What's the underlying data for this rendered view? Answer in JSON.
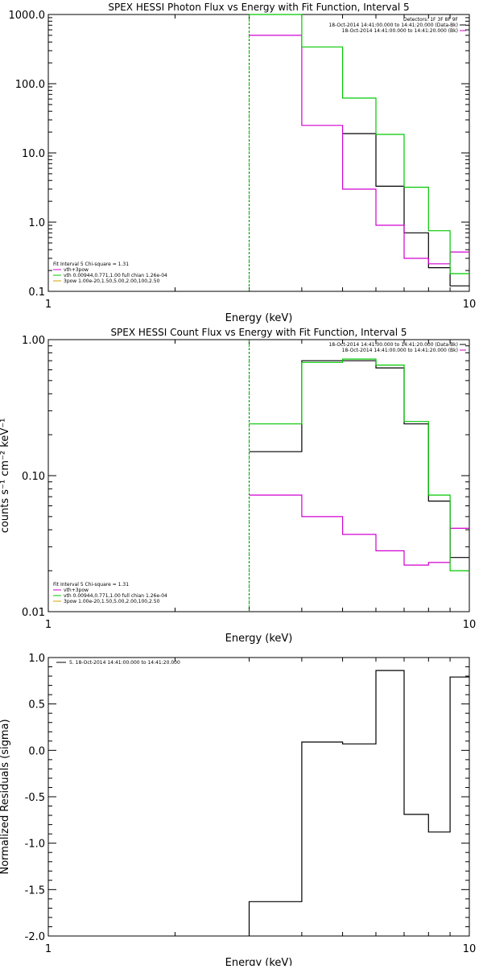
{
  "charts": [
    {
      "type": "line",
      "title": "SPEX HESSI Photon Flux vs Energy with Fit Function, Interval 5",
      "xlabel": "Energy (keV)",
      "ylabel": "",
      "xscale": "log",
      "yscale": "log",
      "xlim": [
        1,
        10
      ],
      "ylim": [
        0.1,
        1000
      ],
      "x_ticks": [
        {
          "v": 1,
          "label": "1"
        },
        {
          "v": 10,
          "label": "10"
        }
      ],
      "y_ticks": [
        {
          "v": 0.1,
          "label": "0.1"
        },
        {
          "v": 1,
          "label": "1.0"
        },
        {
          "v": 10,
          "label": "10.0"
        },
        {
          "v": 100,
          "label": "100.0"
        },
        {
          "v": 1000,
          "label": "1000.0"
        }
      ],
      "vline": {
        "x": 3,
        "color": "#00c800",
        "style": "dashed"
      },
      "series": [
        {
          "color": "#000000",
          "style": "step",
          "edges": [
            5.0,
            6.0,
            7.0,
            8.0,
            9.0,
            10.0
          ],
          "values": [
            19,
            3.3,
            0.7,
            0.22,
            0.12
          ]
        },
        {
          "color": "#d000d0",
          "style": "step",
          "edges": [
            3.0,
            4.0,
            5.0,
            6.0,
            7.0,
            8.0,
            9.0,
            10.0
          ],
          "values": [
            500,
            25,
            3.0,
            0.9,
            0.3,
            0.25,
            0.37
          ]
        },
        {
          "color": "#00c800",
          "style": "step",
          "edges": [
            3.0,
            4.0,
            5.0,
            6.0,
            7.0,
            8.0,
            9.0,
            10.0
          ],
          "values": [
            1200,
            340,
            62,
            18.5,
            3.2,
            0.75,
            0.18
          ]
        }
      ],
      "legend_top": {
        "lines": [
          {
            "text": "Detectors: 1F 3F 8F 9F",
            "color": "#000000"
          },
          {
            "text": "18-Oct-2014 14:41:00.000 to 14:41:20.000 (Data-Bk)",
            "color": "#000000"
          },
          {
            "text": "18-Oct-2014 14:41:00.000 to 14:41:20.000 (Bk)",
            "color": "#d000d0"
          }
        ]
      },
      "legend_bottom": {
        "header": "Fit Interval 5   Chi-square = 1.31",
        "items": [
          {
            "text": "vth+3pow",
            "color": "#d000d0"
          },
          {
            "text": "vth 0.00944,0.771,1.00  full chian 1.26e-04",
            "color": "#00c800"
          },
          {
            "text": "3pow 1.00e-20,1.50,5.00,2.00,100,2.50",
            "color": "#d0a000"
          }
        ]
      }
    },
    {
      "type": "line",
      "title": "SPEX HESSI Count Flux vs Energy with Fit Function, Interval 5",
      "xlabel": "Energy (keV)",
      "ylabel": "counts s⁻¹ cm⁻² keV⁻¹",
      "xscale": "log",
      "yscale": "log",
      "xlim": [
        1,
        10
      ],
      "ylim": [
        0.01,
        1.0
      ],
      "x_ticks": [
        {
          "v": 1,
          "label": "1"
        },
        {
          "v": 10,
          "label": "10"
        }
      ],
      "y_ticks": [
        {
          "v": 0.01,
          "label": "0.01"
        },
        {
          "v": 0.1,
          "label": "0.10"
        },
        {
          "v": 1,
          "label": "1.00"
        }
      ],
      "vline": {
        "x": 3,
        "color": "#00c800",
        "style": "dashed"
      },
      "series": [
        {
          "color": "#000000",
          "style": "step",
          "edges": [
            3.0,
            4.0,
            5.0,
            6.0,
            7.0,
            8.0,
            9.0,
            10.0
          ],
          "values": [
            0.15,
            0.7,
            0.7,
            0.62,
            0.24,
            0.065,
            0.025
          ]
        },
        {
          "color": "#d000d0",
          "style": "step",
          "edges": [
            3.0,
            4.0,
            5.0,
            6.0,
            7.0,
            8.0,
            9.0,
            10.0
          ],
          "values": [
            0.072,
            0.05,
            0.037,
            0.028,
            0.022,
            0.023,
            0.041
          ]
        },
        {
          "color": "#00c800",
          "style": "step",
          "edges": [
            3.0,
            4.0,
            5.0,
            6.0,
            7.0,
            8.0,
            9.0,
            10.0
          ],
          "values": [
            0.24,
            0.68,
            0.72,
            0.65,
            0.25,
            0.072,
            0.02
          ]
        }
      ],
      "legend_top": {
        "lines": [
          {
            "text": "18-Oct-2014 14:41:00.000 to 14:41:20.000 (Data-Bk)",
            "color": "#000000"
          },
          {
            "text": "18-Oct-2014 14:41:00.000 to 14:41:20.000 (Bk)",
            "color": "#d000d0"
          }
        ]
      },
      "legend_bottom": {
        "header": "Fit Interval 5   Chi-square = 1.31",
        "items": [
          {
            "text": "vth+3pow",
            "color": "#d000d0"
          },
          {
            "text": "vth 0.00944,0.771,1.00  full chian 1.26e-04",
            "color": "#00c800"
          },
          {
            "text": "3pow 1.00e-20,1.50,5.00,2.00,100,2.50",
            "color": "#d0a000"
          }
        ]
      }
    },
    {
      "type": "line",
      "title": "",
      "xlabel": "Energy (keV)",
      "ylabel": "Normalized Residuals (sigma)",
      "xscale": "log",
      "yscale": "linear",
      "xlim": [
        1,
        10
      ],
      "ylim": [
        -2.0,
        1.0
      ],
      "x_ticks": [
        {
          "v": 1,
          "label": "1"
        },
        {
          "v": 10,
          "label": "10"
        }
      ],
      "y_ticks": [
        {
          "v": -2.0,
          "label": "-2.0"
        },
        {
          "v": -1.5,
          "label": "-1.5"
        },
        {
          "v": -1.0,
          "label": "-1.0"
        },
        {
          "v": -0.5,
          "label": "-0.5"
        },
        {
          "v": 0.0,
          "label": "0.0"
        },
        {
          "v": 0.5,
          "label": "0.5"
        },
        {
          "v": 1.0,
          "label": "1.0"
        }
      ],
      "series": [
        {
          "color": "#000000",
          "style": "step",
          "edges": [
            3.0,
            4.0,
            5.0,
            6.0,
            7.0,
            8.0,
            9.0,
            10.0
          ],
          "values": [
            -1.63,
            0.09,
            0.07,
            0.86,
            -0.69,
            -0.88,
            0.79
          ]
        }
      ],
      "legend_top": {
        "lines": [
          {
            "text": "5. 18-Oct-2014 14:41:00.000 to 14:41:20.000",
            "color": "#000000"
          }
        ]
      }
    }
  ]
}
